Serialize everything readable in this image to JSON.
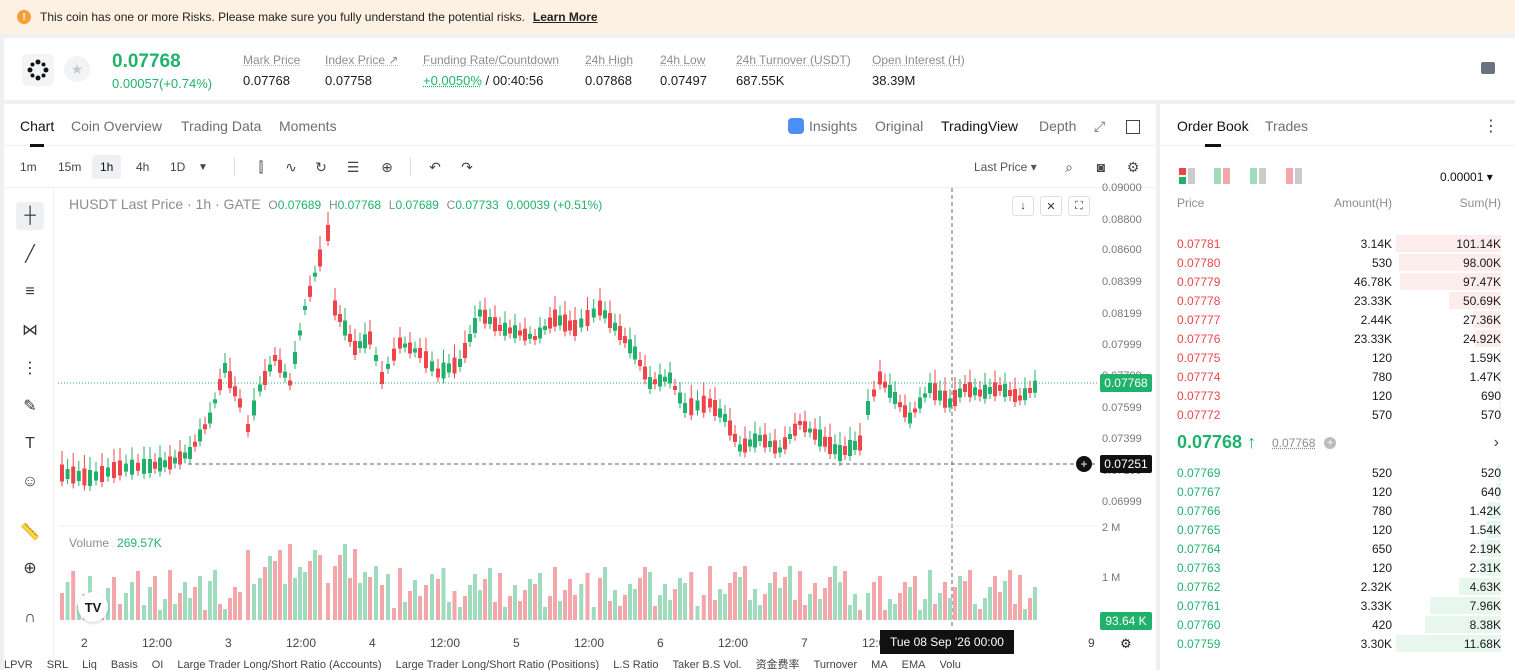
{
  "warning": {
    "text": "This coin has one or more Risks. Please make sure you fully understand the potential risks.",
    "link": "Learn More"
  },
  "ticker": {
    "last_price": "0.07768",
    "change": "0.00057(+0.74%)",
    "stats": [
      {
        "label": "Mark Price",
        "value": "0.07768"
      },
      {
        "label": "Index Price ↗",
        "value": "0.07758"
      },
      {
        "label": "Funding Rate/Countdown",
        "value_green": "+0.0050%",
        "value": " / 00:40:56"
      },
      {
        "label": "24h High",
        "value": "0.07868"
      },
      {
        "label": "24h Low",
        "value": "0.07497"
      },
      {
        "label": "24h Turnover (USDT)",
        "value": "687.55K"
      },
      {
        "label": "Open Interest (H)",
        "value": "38.39M"
      }
    ]
  },
  "chart_tabs": {
    "left": [
      "Chart",
      "Coin Overview",
      "Trading Data",
      "Moments"
    ],
    "insights": "Insights",
    "original": "Original",
    "tradingview": "TradingView",
    "depth": "Depth"
  },
  "timeframes": [
    "1m",
    "15m",
    "1h",
    "4h",
    "1D"
  ],
  "last_price_select": "Last Price",
  "legend": {
    "symbol": "HUSDT Last Price · 1h · GATE",
    "o_label": "O",
    "o": "0.07689",
    "h_label": "H",
    "h": "0.07768",
    "l_label": "L",
    "l": "0.07689",
    "c_label": "C",
    "c": "0.07733",
    "chg": "0.00039 (+0.51%)",
    "volume_label": "Volume",
    "volume_value": "269.57K"
  },
  "price_axis": [
    "0.09000",
    "0.08800",
    "0.08600",
    "0.08399",
    "0.08199",
    "0.07999",
    "0.07799",
    "0.07599",
    "0.07399",
    "0.07199",
    "0.06999"
  ],
  "volume_axis": [
    "2 M",
    "1 M"
  ],
  "price_tags": {
    "last": "0.07768",
    "cursor": "0.07251",
    "volume": "93.64 K"
  },
  "x_axis": [
    "2",
    "12:00",
    "3",
    "12:00",
    "4",
    "12:00",
    "5",
    "12:00",
    "6",
    "12:00",
    "7",
    "12:00",
    "9"
  ],
  "crosshair_date": "Tue 08 Sep '26   00:00",
  "bottom_indicators": [
    "LPVR",
    "SRL",
    "Liq",
    "Basis",
    "OI",
    "Large Trader Long/Short Ratio (Accounts)",
    "Large Trader Long/Short Ratio (Positions)",
    "L.S Ratio",
    "Taker B.S Vol.",
    "资金费率",
    "Turnover",
    "MA",
    "EMA",
    "Volu"
  ],
  "orderbook": {
    "tabs": [
      "Order Book",
      "Trades"
    ],
    "precision": "0.00001",
    "headers": {
      "price": "Price",
      "amount": "Amount(H)",
      "sum": "Sum(H)"
    },
    "asks": [
      {
        "price": "0.07781",
        "amount": "3.14K",
        "sum": "101.14K",
        "depth": 1.0
      },
      {
        "price": "0.07780",
        "amount": "530",
        "sum": "98.00K",
        "depth": 0.97
      },
      {
        "price": "0.07779",
        "amount": "46.78K",
        "sum": "97.47K",
        "depth": 0.96
      },
      {
        "price": "0.07778",
        "amount": "23.33K",
        "sum": "50.69K",
        "depth": 0.5
      },
      {
        "price": "0.07777",
        "amount": "2.44K",
        "sum": "27.36K",
        "depth": 0.27
      },
      {
        "price": "0.07776",
        "amount": "23.33K",
        "sum": "24.92K",
        "depth": 0.25
      },
      {
        "price": "0.07775",
        "amount": "120",
        "sum": "1.59K",
        "depth": 0.02
      },
      {
        "price": "0.07774",
        "amount": "780",
        "sum": "1.47K",
        "depth": 0.015
      },
      {
        "price": "0.07773",
        "amount": "120",
        "sum": "690",
        "depth": 0.007
      },
      {
        "price": "0.07772",
        "amount": "570",
        "sum": "570",
        "depth": 0.006
      }
    ],
    "mid_price": "0.07768 ↑",
    "mark_price": "0.07768",
    "bids": [
      {
        "price": "0.07769",
        "amount": "520",
        "sum": "520",
        "depth": 0.04
      },
      {
        "price": "0.07767",
        "amount": "120",
        "sum": "640",
        "depth": 0.05
      },
      {
        "price": "0.07766",
        "amount": "780",
        "sum": "1.42K",
        "depth": 0.12
      },
      {
        "price": "0.07765",
        "amount": "120",
        "sum": "1.54K",
        "depth": 0.13
      },
      {
        "price": "0.07764",
        "amount": "650",
        "sum": "2.19K",
        "depth": 0.19
      },
      {
        "price": "0.07763",
        "amount": "120",
        "sum": "2.31K",
        "depth": 0.2
      },
      {
        "price": "0.07762",
        "amount": "2.32K",
        "sum": "4.63K",
        "depth": 0.4
      },
      {
        "price": "0.07761",
        "amount": "3.33K",
        "sum": "7.96K",
        "depth": 0.68
      },
      {
        "price": "0.07760",
        "amount": "420",
        "sum": "8.38K",
        "depth": 0.72
      },
      {
        "price": "0.07759",
        "amount": "3.30K",
        "sum": "11.68K",
        "depth": 1.0
      }
    ]
  },
  "colors": {
    "up": "#20b26c",
    "down": "#ef454a",
    "up_bg": "#e8f7ee",
    "down_bg": "#fdecec",
    "up_vol": "#9fdcbe",
    "down_vol": "#f3a7ab"
  }
}
